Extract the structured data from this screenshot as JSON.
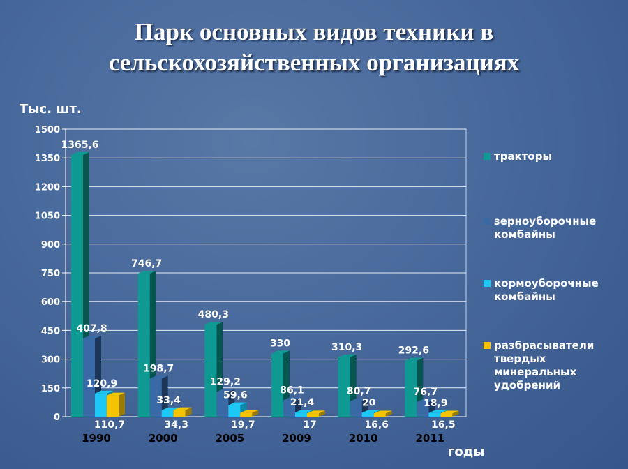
{
  "title_line1": "Парк основных видов техники  в",
  "title_line2": "сельскохозяйственных организациях",
  "chart_data": {
    "type": "bar",
    "title": "Парк основных видов техники в сельскохозяйственных организациях",
    "ylabel": "Тыс. шт.",
    "xlabel": "годы",
    "ylim": [
      0,
      1500
    ],
    "yticks": [
      0,
      150,
      300,
      450,
      600,
      750,
      900,
      1050,
      1200,
      1350,
      1500
    ],
    "grid": true,
    "legend_position": "right",
    "categories": [
      "1990",
      "2000",
      "2005",
      "2009",
      "2010",
      "2011"
    ],
    "series": [
      {
        "name": "тракторы",
        "color": "#0e9a92",
        "side": "#06554f",
        "values": [
          1365.6,
          746.7,
          480.3,
          330,
          310.3,
          292.6
        ],
        "labels": [
          "1365,6",
          "746,7",
          "480,3",
          "330",
          "310,3",
          "292,6"
        ]
      },
      {
        "name": "зерноуборочные комбайны",
        "color": "#3a6aa6",
        "side": "#1d3658",
        "values": [
          407.8,
          198.7,
          129.2,
          86.1,
          80.7,
          76.7
        ],
        "labels": [
          "407,8",
          "198,7",
          "129,2",
          "86,1",
          "80,7",
          "76,7"
        ]
      },
      {
        "name": "кормоуборочные комбайны",
        "color": "#1ec8f4",
        "side": "#0a8aa8",
        "values": [
          120.9,
          33.4,
          59.6,
          21.4,
          20,
          18.9
        ],
        "labels": [
          "120,9",
          "33,4",
          "59,6",
          "21,4",
          "20",
          "18,9"
        ]
      },
      {
        "name": "разбрасыватели твердых минеральных удобрений",
        "color": "#f4c400",
        "side": "#9a7a00",
        "values": [
          110.7,
          34.3,
          19.7,
          17,
          16.6,
          16.5
        ],
        "labels": [
          "110,7",
          "34,3",
          "19,7",
          "17",
          "16,6",
          "16,5"
        ]
      }
    ]
  }
}
